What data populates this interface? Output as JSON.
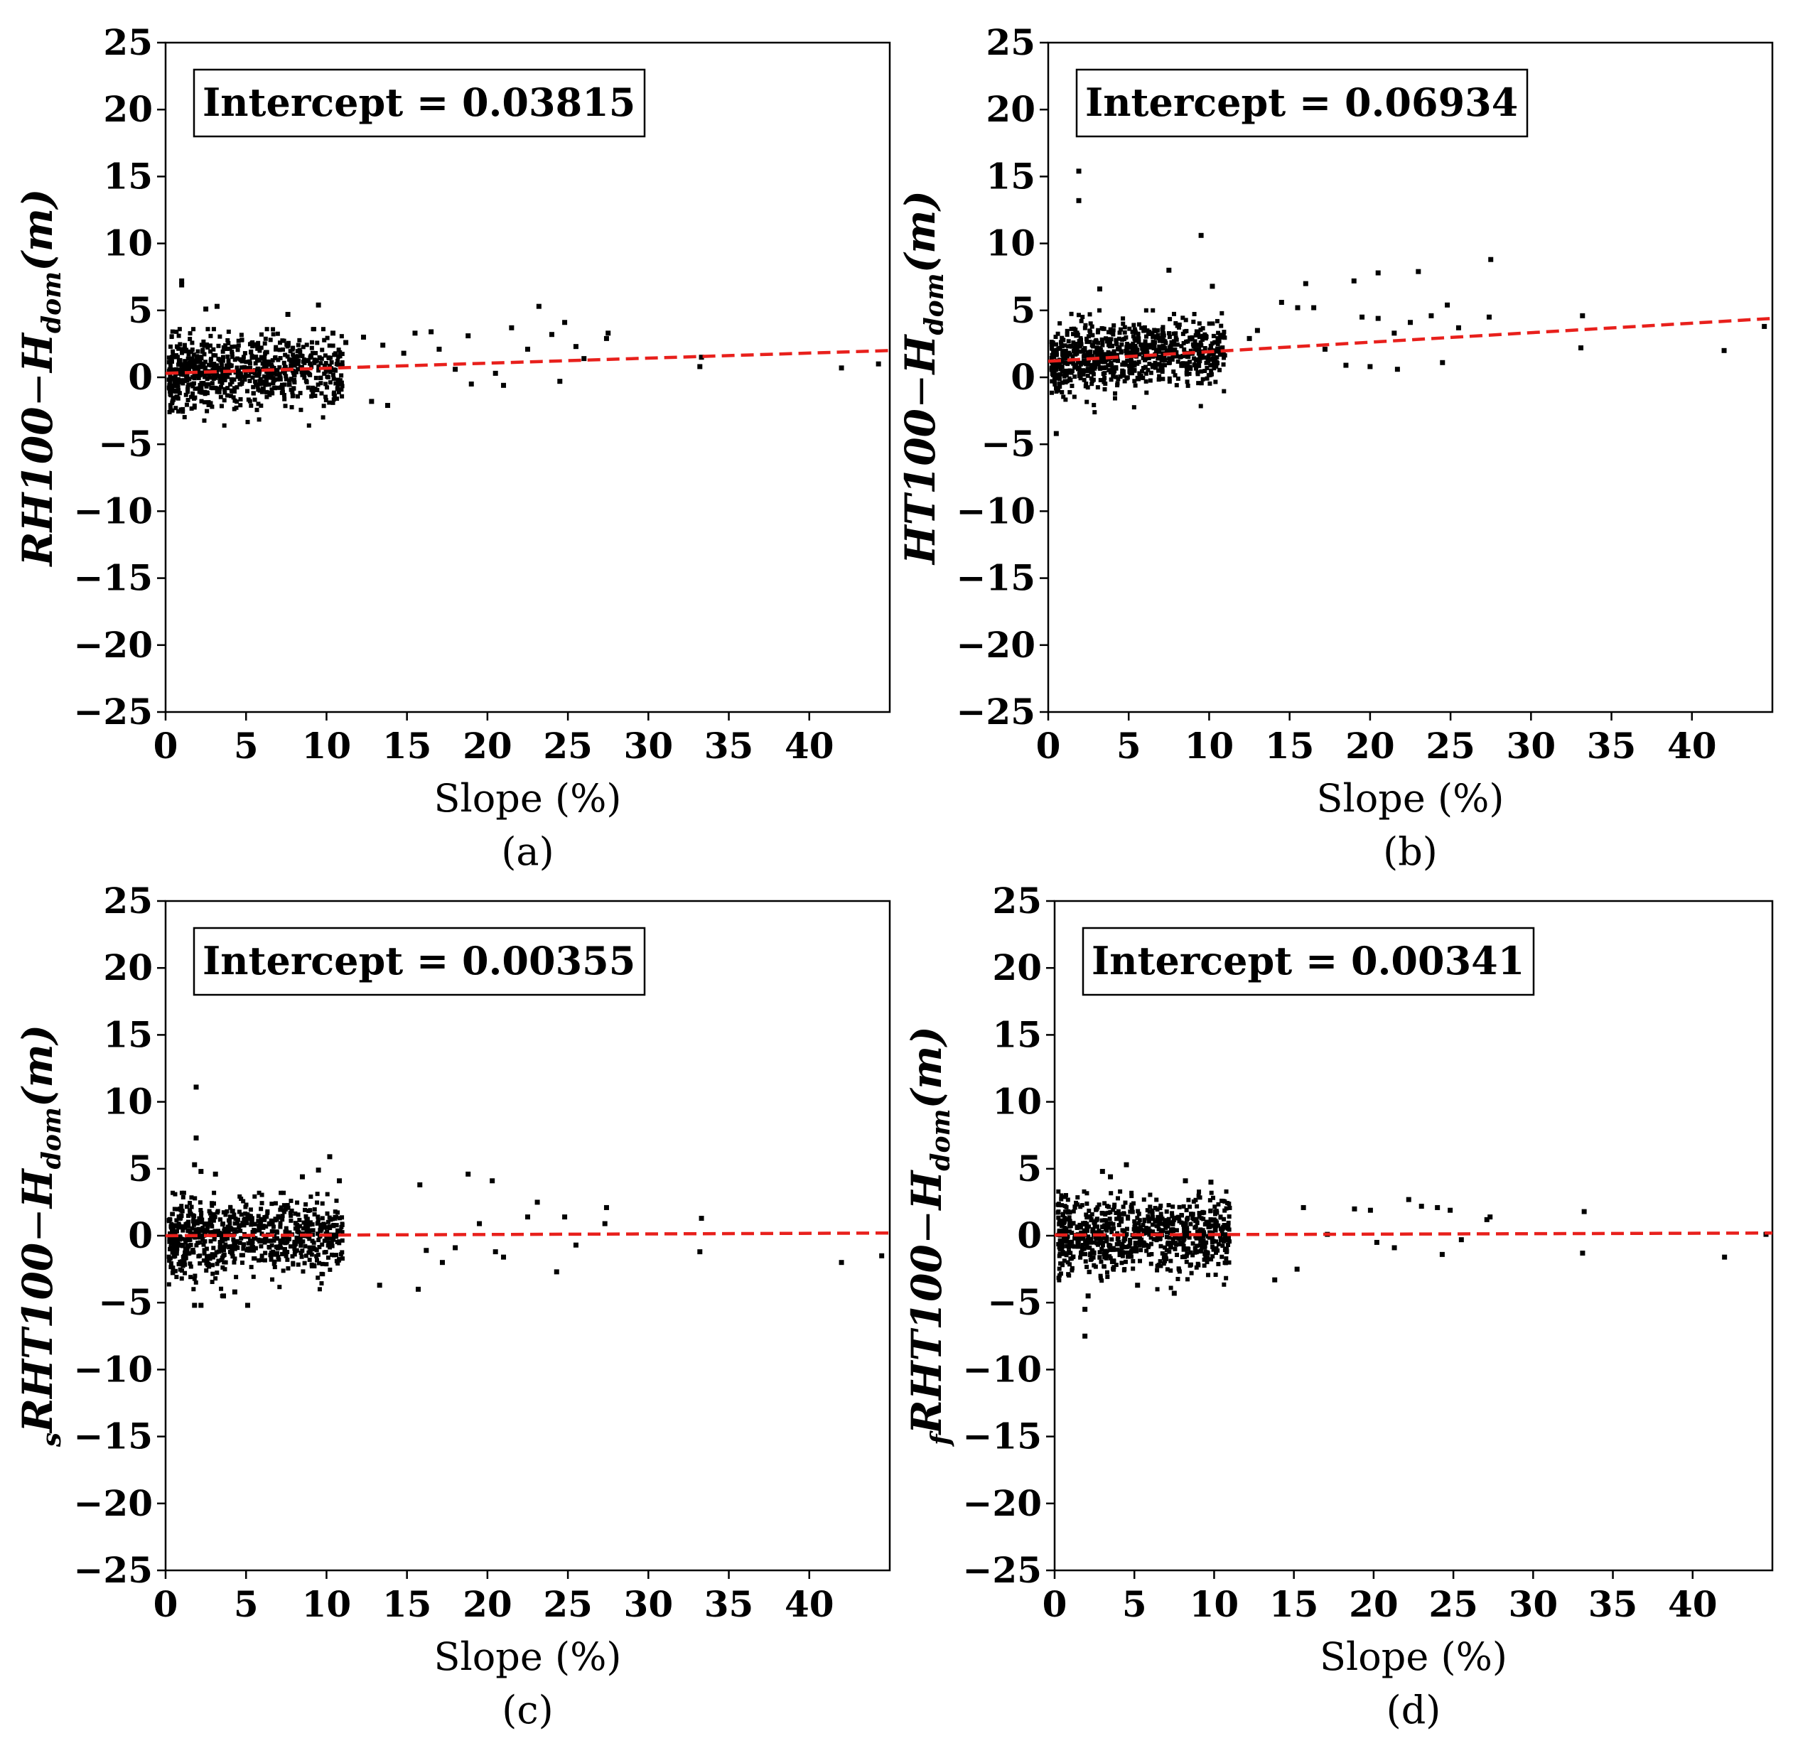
{
  "chart_data": [
    {
      "type": "scatter",
      "panel": "(a)",
      "xlabel": "Slope (%)",
      "ylabel": {
        "pre": "",
        "main": "RH100",
        "dash": "−",
        "h": "H",
        "sub": "dom",
        "unit": "(m)"
      },
      "annotation": "Intercept = 0.03815",
      "xlim": [
        0,
        45
      ],
      "ylim": [
        -25,
        25
      ],
      "xticks": [
        0,
        5,
        10,
        15,
        20,
        25,
        30,
        35,
        40
      ],
      "xtick_labels": [
        "0",
        "5",
        "10",
        "15",
        "20",
        "25",
        "30",
        "35",
        "40"
      ],
      "yticks": [
        25,
        20,
        15,
        10,
        5,
        0,
        -5,
        -10,
        -15,
        -20,
        -25
      ],
      "ytick_labels": [
        "25",
        "20",
        "15",
        "10",
        "5",
        "0",
        "−5",
        "−10",
        "−15",
        "−20",
        "−25"
      ],
      "trend": {
        "x": [
          0,
          45
        ],
        "y": [
          0.3,
          2.0
        ],
        "color": "#e8201c",
        "style": "dashed"
      },
      "point_cloud": {
        "n": 800,
        "xmax_dense": 11,
        "mean": 0.25,
        "slope": 0.035,
        "sd": 1.3,
        "ymin": -3.6,
        "ymax": 3.6
      },
      "points": [
        [
          1,
          7.2
        ],
        [
          1,
          6.9
        ],
        [
          2.5,
          5.1
        ],
        [
          3.2,
          5.3
        ],
        [
          7.6,
          4.7
        ],
        [
          9.5,
          5.4
        ],
        [
          15.5,
          3.3
        ],
        [
          16.5,
          3.4
        ],
        [
          18.8,
          3.1
        ],
        [
          21.5,
          3.7
        ],
        [
          22.5,
          2.1
        ],
        [
          23.2,
          5.3
        ],
        [
          24.8,
          4.1
        ],
        [
          24,
          3.2
        ],
        [
          25.5,
          2.3
        ],
        [
          27.5,
          3.3
        ],
        [
          27.4,
          2.9
        ],
        [
          17,
          2.1
        ],
        [
          18,
          0.6
        ],
        [
          19,
          -0.5
        ],
        [
          20.5,
          0.3
        ],
        [
          21,
          -0.6
        ],
        [
          24.5,
          -0.3
        ],
        [
          26,
          1.4
        ],
        [
          33.3,
          1.5
        ],
        [
          33.2,
          0.8
        ],
        [
          42,
          0.7
        ],
        [
          44.3,
          1.0
        ],
        [
          13.5,
          2.4
        ],
        [
          12.3,
          3.0
        ],
        [
          14.8,
          1.8
        ],
        [
          11.2,
          2.6
        ],
        [
          10.4,
          3.3
        ],
        [
          12.8,
          -1.8
        ],
        [
          13.8,
          -2.1
        ]
      ]
    },
    {
      "type": "scatter",
      "panel": "(b)",
      "xlabel": "Slope (%)",
      "ylabel": {
        "pre": "",
        "main": "HT100",
        "dash": "−",
        "h": "H",
        "sub": "dom",
        "unit": "(m)"
      },
      "annotation": "Intercept = 0.06934",
      "xlim": [
        0,
        45
      ],
      "ylim": [
        -25,
        25
      ],
      "xticks": [
        0,
        5,
        10,
        15,
        20,
        25,
        30,
        35,
        40
      ],
      "xtick_labels": [
        "0",
        "5",
        "10",
        "15",
        "20",
        "25",
        "30",
        "35",
        "40"
      ],
      "yticks": [
        25,
        20,
        15,
        10,
        5,
        0,
        -5,
        -10,
        -15,
        -20,
        -25
      ],
      "ytick_labels": [
        "25",
        "20",
        "15",
        "10",
        "5",
        "0",
        "−5",
        "−10",
        "−15",
        "−20",
        "−25"
      ],
      "trend": {
        "x": [
          0,
          45
        ],
        "y": [
          1.2,
          4.4
        ],
        "color": "#e8201c",
        "style": "dashed"
      },
      "point_cloud": {
        "n": 800,
        "xmax_dense": 11,
        "mean": 1.3,
        "slope": 0.07,
        "sd": 1.3,
        "ymin": -2.8,
        "ymax": 5.0
      },
      "points": [
        [
          1.9,
          15.4
        ],
        [
          1.9,
          13.2
        ],
        [
          9.5,
          10.6
        ],
        [
          7.5,
          8.0
        ],
        [
          3.2,
          6.6
        ],
        [
          10.2,
          6.8
        ],
        [
          16,
          7.0
        ],
        [
          19,
          7.2
        ],
        [
          20.5,
          7.8
        ],
        [
          23,
          7.9
        ],
        [
          27.5,
          8.8
        ],
        [
          27.4,
          4.5
        ],
        [
          14.5,
          5.6
        ],
        [
          15.5,
          5.2
        ],
        [
          16.5,
          5.2
        ],
        [
          19.5,
          4.5
        ],
        [
          20.5,
          4.4
        ],
        [
          22.5,
          4.1
        ],
        [
          23.8,
          4.6
        ],
        [
          24.8,
          5.4
        ],
        [
          25.5,
          3.7
        ],
        [
          21.5,
          3.3
        ],
        [
          24.5,
          1.1
        ],
        [
          21.7,
          0.6
        ],
        [
          20,
          0.8
        ],
        [
          18.5,
          0.9
        ],
        [
          17.2,
          2.1
        ],
        [
          33.2,
          4.6
        ],
        [
          33.1,
          2.2
        ],
        [
          42,
          2.0
        ],
        [
          44.5,
          3.8
        ],
        [
          0.5,
          -4.2
        ],
        [
          12.5,
          2.9
        ],
        [
          13,
          3.5
        ]
      ]
    },
    {
      "type": "scatter",
      "panel": "(c)",
      "xlabel": "Slope (%)",
      "ylabel": {
        "pre": "s",
        "main": "RHT100",
        "dash": "−",
        "h": "H",
        "sub": "dom",
        "unit": "(m)"
      },
      "annotation": "Intercept = 0.00355",
      "xlim": [
        0,
        45
      ],
      "ylim": [
        -25,
        25
      ],
      "xticks": [
        0,
        5,
        10,
        15,
        20,
        25,
        30,
        35,
        40
      ],
      "xtick_labels": [
        "0",
        "5",
        "10",
        "15",
        "20",
        "25",
        "30",
        "35",
        "40"
      ],
      "yticks": [
        25,
        20,
        15,
        10,
        5,
        0,
        -5,
        -10,
        -15,
        -20,
        -25
      ],
      "ytick_labels": [
        "25",
        "20",
        "15",
        "10",
        "5",
        "0",
        "−5",
        "−10",
        "−15",
        "−20",
        "−25"
      ],
      "trend": {
        "x": [
          0,
          45
        ],
        "y": [
          0.0,
          0.2
        ],
        "color": "#e8201c",
        "style": "dashed"
      },
      "point_cloud": {
        "n": 800,
        "xmax_dense": 11,
        "mean": 0.0,
        "slope": 0.0,
        "sd": 1.4,
        "ymin": -4.5,
        "ymax": 3.2
      },
      "points": [
        [
          1.9,
          11.1
        ],
        [
          1.9,
          7.3
        ],
        [
          1.8,
          5.3
        ],
        [
          2.2,
          4.8
        ],
        [
          3.1,
          4.6
        ],
        [
          8.5,
          4.4
        ],
        [
          9.5,
          4.9
        ],
        [
          10.2,
          5.9
        ],
        [
          10.8,
          4.1
        ],
        [
          15.8,
          3.8
        ],
        [
          18.8,
          4.6
        ],
        [
          20.3,
          4.1
        ],
        [
          23.1,
          2.5
        ],
        [
          27.4,
          2.1
        ],
        [
          27.3,
          0.9
        ],
        [
          22.5,
          1.4
        ],
        [
          24.8,
          1.4
        ],
        [
          25.5,
          -0.7
        ],
        [
          24.3,
          -2.7
        ],
        [
          21,
          -1.6
        ],
        [
          20.5,
          -1.2
        ],
        [
          19.5,
          0.9
        ],
        [
          18,
          -0.9
        ],
        [
          17.2,
          -2.0
        ],
        [
          15.7,
          -4.0
        ],
        [
          16.2,
          -1.1
        ],
        [
          13.3,
          -3.7
        ],
        [
          33.3,
          1.3
        ],
        [
          33.2,
          -1.2
        ],
        [
          42,
          -2.0
        ],
        [
          44.5,
          -1.5
        ],
        [
          1.8,
          -5.2
        ],
        [
          2.2,
          -5.2
        ],
        [
          5.1,
          -5.2
        ],
        [
          4.3,
          -4.2
        ],
        [
          3.6,
          -4.5
        ]
      ]
    },
    {
      "type": "scatter",
      "panel": "(d)",
      "xlabel": "Slope (%)",
      "ylabel": {
        "pre": "f",
        "main": "RHT100",
        "dash": "−",
        "h": "H",
        "sub": "dom",
        "unit": "(m)"
      },
      "annotation": "Intercept = 0.00341",
      "xlim": [
        0,
        45
      ],
      "ylim": [
        -25,
        25
      ],
      "xticks": [
        0,
        5,
        10,
        15,
        20,
        25,
        30,
        35,
        40
      ],
      "xtick_labels": [
        "0",
        "5",
        "10",
        "15",
        "20",
        "25",
        "30",
        "35",
        "40"
      ],
      "yticks": [
        25,
        20,
        15,
        10,
        5,
        0,
        -5,
        -10,
        -15,
        -20,
        -25
      ],
      "ytick_labels": [
        "25",
        "20",
        "15",
        "10",
        "5",
        "0",
        "−5",
        "−10",
        "−15",
        "−20",
        "−25"
      ],
      "trend": {
        "x": [
          0,
          45
        ],
        "y": [
          0.05,
          0.2
        ],
        "color": "#e8201c",
        "style": "dashed"
      },
      "point_cloud": {
        "n": 800,
        "xmax_dense": 11,
        "mean": 0.0,
        "slope": 0.0,
        "sd": 1.35,
        "ymin": -4.0,
        "ymax": 3.3
      },
      "points": [
        [
          1.9,
          -7.5
        ],
        [
          1.9,
          -5.5
        ],
        [
          2.1,
          -4.5
        ],
        [
          4.5,
          5.3
        ],
        [
          3,
          4.8
        ],
        [
          8.2,
          4.1
        ],
        [
          9.8,
          4.0
        ],
        [
          3.5,
          4.4
        ],
        [
          18.8,
          2.0
        ],
        [
          19.8,
          1.9
        ],
        [
          22.2,
          2.7
        ],
        [
          23,
          2.2
        ],
        [
          24,
          2.1
        ],
        [
          24.8,
          1.9
        ],
        [
          27.3,
          1.4
        ],
        [
          27.1,
          1.2
        ],
        [
          25.5,
          -0.3
        ],
        [
          24.3,
          -1.4
        ],
        [
          21.3,
          -0.9
        ],
        [
          20.2,
          -0.5
        ],
        [
          17.1,
          0.1
        ],
        [
          15.6,
          2.1
        ],
        [
          13.8,
          -3.3
        ],
        [
          15.2,
          -2.5
        ],
        [
          33.2,
          1.8
        ],
        [
          33.1,
          -1.3
        ],
        [
          42,
          -1.6
        ],
        [
          44.6,
          0.1
        ],
        [
          7.5,
          -4.3
        ],
        [
          5.2,
          -3.7
        ]
      ]
    }
  ]
}
